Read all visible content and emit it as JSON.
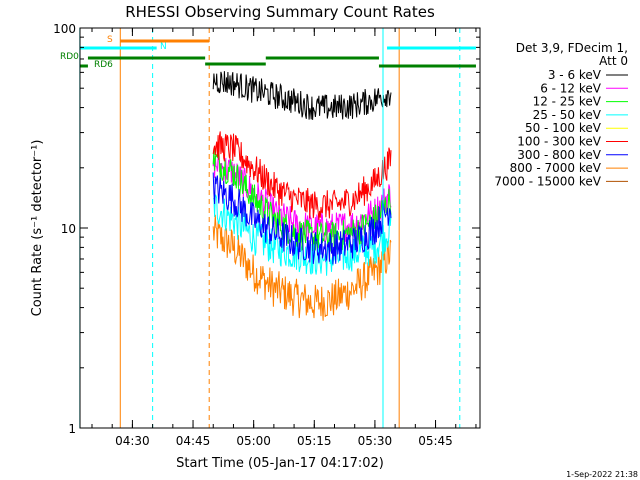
{
  "chart_data": {
    "type": "line",
    "title": "RHESSI Observing Summary Count Rates",
    "xlabel": "Start Time (05-Jan-17 04:17:02)",
    "ylabel": "Count Rate (s⁻¹ detector⁻¹)",
    "y_scale": "log",
    "ylim": [
      1,
      100
    ],
    "y_ticks": [
      "1",
      "10",
      "100"
    ],
    "xlim": [
      "04:17:02",
      "05:56:00"
    ],
    "x_ticks": [
      "04:30",
      "04:45",
      "05:00",
      "05:15",
      "05:30",
      "05:45"
    ],
    "legend_header": [
      "Det 3,9, FDecim 1,",
      "Att 0"
    ],
    "legend_position": "right",
    "series": [
      {
        "name": "3 - 6 keV",
        "color": "#000000",
        "x": [
          "04:50",
          "04:55",
          "05:00",
          "05:05",
          "05:10",
          "05:15",
          "05:20",
          "05:25",
          "05:30",
          "05:34"
        ],
        "values": [
          55,
          53,
          49,
          46,
          43,
          40,
          40,
          41,
          44,
          48
        ]
      },
      {
        "name": "6 - 12 keV",
        "color": "#ff00ff",
        "x": [
          "04:50",
          "04:55",
          "05:00",
          "05:05",
          "05:10",
          "05:15",
          "05:20",
          "05:25",
          "05:30",
          "05:34"
        ],
        "values": [
          21,
          19,
          15,
          12,
          10.5,
          10,
          10,
          10.5,
          12,
          15
        ]
      },
      {
        "name": "12 - 25 keV",
        "color": "#00ff00",
        "x": [
          "04:50",
          "04:55",
          "05:00",
          "05:05",
          "05:10",
          "05:15",
          "05:20",
          "05:25",
          "05:30",
          "05:34"
        ],
        "values": [
          22,
          19,
          14,
          11,
          9.5,
          9,
          9,
          9.5,
          11,
          14
        ]
      },
      {
        "name": "25 - 50 keV",
        "color": "#00ffff",
        "x": [
          "04:50",
          "04:55",
          "05:00",
          "05:05",
          "05:10",
          "05:15",
          "05:20",
          "05:25",
          "05:30",
          "05:34"
        ],
        "values": [
          13,
          11,
          9,
          8,
          7.5,
          7,
          7,
          7.5,
          8,
          10
        ]
      },
      {
        "name": "50 - 100 keV",
        "color": "#ffff00",
        "x": [],
        "values": []
      },
      {
        "name": "100 - 300 keV",
        "color": "#ff0000",
        "x": [
          "04:50",
          "04:55",
          "05:00",
          "05:05",
          "05:10",
          "05:15",
          "05:20",
          "05:25",
          "05:30",
          "05:34"
        ],
        "values": [
          26,
          25,
          20,
          16,
          14,
          13,
          13,
          14,
          17,
          22
        ]
      },
      {
        "name": "300 - 800 keV",
        "color": "#0000ff",
        "x": [
          "04:50",
          "04:55",
          "05:00",
          "05:05",
          "05:10",
          "05:15",
          "05:20",
          "05:25",
          "05:30",
          "05:34"
        ],
        "values": [
          16,
          14,
          11,
          9.5,
          8.5,
          8,
          8,
          8.5,
          10,
          13
        ]
      },
      {
        "name": "800 - 7000 keV",
        "color": "#ff8000",
        "x": [
          "04:50",
          "04:55",
          "05:00",
          "05:05",
          "05:10",
          "05:15",
          "05:20",
          "05:25",
          "05:30",
          "05:34"
        ],
        "values": [
          9.5,
          8,
          6,
          5,
          4.5,
          4.2,
          4.4,
          5,
          6,
          7.5
        ]
      },
      {
        "name": "7000 - 15000 keV",
        "color": "#b05000",
        "x": [],
        "values": []
      }
    ],
    "flag_bars": [
      {
        "label": "S",
        "color": "#ff8000",
        "segments": [
          [
            "04:27",
            "04:49"
          ]
        ]
      },
      {
        "label": "N",
        "color": "#00ffff",
        "segments": [
          [
            "04:17",
            "04:36"
          ],
          [
            "05:33",
            "05:55"
          ]
        ]
      },
      {
        "label": "RD0",
        "color": "#008000",
        "segments": [
          [
            "04:19",
            "04:48"
          ],
          [
            "04:48",
            "05:03"
          ],
          [
            "05:03",
            "05:31"
          ],
          [
            "05:31",
            "05:55"
          ]
        ]
      },
      {
        "label": "RD6",
        "color": "#008000",
        "segments": [
          [
            "04:17",
            "04:19"
          ]
        ]
      }
    ],
    "vertical_markers": [
      {
        "x": "04:17",
        "color": "#00ffff",
        "style": "solid"
      },
      {
        "x": "04:27",
        "color": "#ff8000",
        "style": "solid"
      },
      {
        "x": "04:35",
        "color": "#00ffff",
        "style": "dashed"
      },
      {
        "x": "04:49",
        "color": "#ff8000",
        "style": "dashed"
      },
      {
        "x": "05:32",
        "color": "#00ffff",
        "style": "solid"
      },
      {
        "x": "05:36",
        "color": "#ff8000",
        "style": "solid"
      },
      {
        "x": "05:51",
        "color": "#00ffff",
        "style": "dashed"
      }
    ],
    "grid": false
  },
  "footer": {
    "date_stamp": "1-Sep-2022 21:38"
  }
}
